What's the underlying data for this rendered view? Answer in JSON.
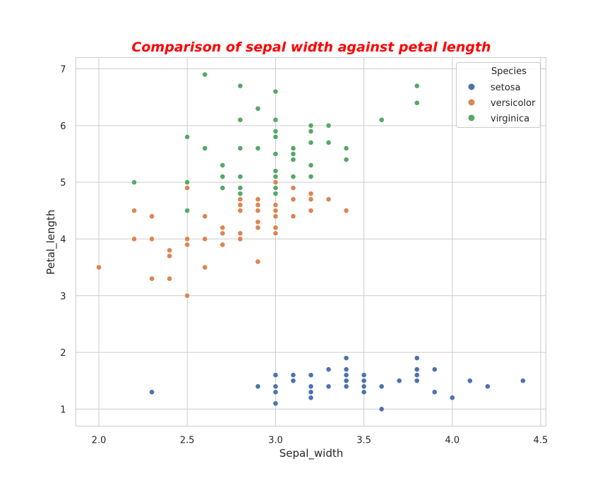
{
  "chart_data": {
    "type": "scatter",
    "title": "Comparison of sepal width against petal length",
    "xlabel": "Sepal_width",
    "ylabel": "Petal_length",
    "xlim": [
      1.87,
      4.53
    ],
    "ylim": [
      0.7,
      7.2
    ],
    "xticks": [
      "2.0",
      "2.5",
      "3.0",
      "3.5",
      "4.0",
      "4.5"
    ],
    "yticks": [
      "1",
      "2",
      "3",
      "4",
      "5",
      "6",
      "7"
    ],
    "grid": true,
    "legend": {
      "title": "Species",
      "position": "top-right"
    },
    "colors": {
      "setosa": "#4c72b0",
      "versicolor": "#dd8452",
      "virginica": "#55a868"
    },
    "series": [
      {
        "name": "setosa",
        "points": [
          [
            3.5,
            1.4
          ],
          [
            3.0,
            1.4
          ],
          [
            3.2,
            1.3
          ],
          [
            3.1,
            1.5
          ],
          [
            3.6,
            1.4
          ],
          [
            3.9,
            1.7
          ],
          [
            3.4,
            1.4
          ],
          [
            3.4,
            1.5
          ],
          [
            2.9,
            1.4
          ],
          [
            3.1,
            1.5
          ],
          [
            3.7,
            1.5
          ],
          [
            3.4,
            1.6
          ],
          [
            3.0,
            1.4
          ],
          [
            3.0,
            1.1
          ],
          [
            4.0,
            1.2
          ],
          [
            4.4,
            1.5
          ],
          [
            3.9,
            1.3
          ],
          [
            3.5,
            1.4
          ],
          [
            3.8,
            1.7
          ],
          [
            3.8,
            1.5
          ],
          [
            3.4,
            1.7
          ],
          [
            3.7,
            1.5
          ],
          [
            3.6,
            1.0
          ],
          [
            3.3,
            1.7
          ],
          [
            3.4,
            1.9
          ],
          [
            3.0,
            1.6
          ],
          [
            3.4,
            1.6
          ],
          [
            3.5,
            1.5
          ],
          [
            3.4,
            1.4
          ],
          [
            3.2,
            1.6
          ],
          [
            3.1,
            1.6
          ],
          [
            3.4,
            1.5
          ],
          [
            4.1,
            1.5
          ],
          [
            4.2,
            1.4
          ],
          [
            3.1,
            1.5
          ],
          [
            3.2,
            1.2
          ],
          [
            3.5,
            1.3
          ],
          [
            3.6,
            1.4
          ],
          [
            3.0,
            1.3
          ],
          [
            3.4,
            1.5
          ],
          [
            3.5,
            1.3
          ],
          [
            2.3,
            1.3
          ],
          [
            3.2,
            1.3
          ],
          [
            3.5,
            1.6
          ],
          [
            3.8,
            1.9
          ],
          [
            3.0,
            1.4
          ],
          [
            3.8,
            1.6
          ],
          [
            3.2,
            1.4
          ],
          [
            3.7,
            1.5
          ],
          [
            3.3,
            1.4
          ]
        ]
      },
      {
        "name": "versicolor",
        "points": [
          [
            3.2,
            4.7
          ],
          [
            3.2,
            4.5
          ],
          [
            3.1,
            4.9
          ],
          [
            2.3,
            4.0
          ],
          [
            2.8,
            4.6
          ],
          [
            2.8,
            4.5
          ],
          [
            3.3,
            4.7
          ],
          [
            2.4,
            3.3
          ],
          [
            2.9,
            4.6
          ],
          [
            2.7,
            3.9
          ],
          [
            2.0,
            3.5
          ],
          [
            3.0,
            4.2
          ],
          [
            2.2,
            4.0
          ],
          [
            2.9,
            4.7
          ],
          [
            2.9,
            3.6
          ],
          [
            3.1,
            4.4
          ],
          [
            3.0,
            4.5
          ],
          [
            2.7,
            4.1
          ],
          [
            2.2,
            4.5
          ],
          [
            2.5,
            3.9
          ],
          [
            3.2,
            4.8
          ],
          [
            2.8,
            4.0
          ],
          [
            2.5,
            4.9
          ],
          [
            2.8,
            4.7
          ],
          [
            2.9,
            4.3
          ],
          [
            3.0,
            4.4
          ],
          [
            2.8,
            4.8
          ],
          [
            3.0,
            5.0
          ],
          [
            2.9,
            4.5
          ],
          [
            2.6,
            3.5
          ],
          [
            2.4,
            3.8
          ],
          [
            2.4,
            3.7
          ],
          [
            2.7,
            3.9
          ],
          [
            2.7,
            5.1
          ],
          [
            3.0,
            4.5
          ],
          [
            3.4,
            4.5
          ],
          [
            3.1,
            4.7
          ],
          [
            2.3,
            4.4
          ],
          [
            3.0,
            4.1
          ],
          [
            2.5,
            4.0
          ],
          [
            2.6,
            4.4
          ],
          [
            3.0,
            4.6
          ],
          [
            2.6,
            4.0
          ],
          [
            2.3,
            3.3
          ],
          [
            2.7,
            4.2
          ],
          [
            3.0,
            4.2
          ],
          [
            2.9,
            4.2
          ],
          [
            2.9,
            4.3
          ],
          [
            2.5,
            3.0
          ],
          [
            2.8,
            4.1
          ]
        ]
      },
      {
        "name": "virginica",
        "points": [
          [
            3.3,
            6.0
          ],
          [
            2.7,
            5.1
          ],
          [
            3.0,
            5.9
          ],
          [
            2.9,
            5.6
          ],
          [
            3.0,
            5.8
          ],
          [
            3.0,
            6.6
          ],
          [
            2.5,
            4.5
          ],
          [
            2.9,
            6.3
          ],
          [
            2.5,
            5.8
          ],
          [
            3.6,
            6.1
          ],
          [
            3.2,
            5.1
          ],
          [
            2.7,
            5.3
          ],
          [
            3.0,
            5.5
          ],
          [
            2.5,
            5.0
          ],
          [
            2.8,
            5.1
          ],
          [
            3.2,
            5.3
          ],
          [
            3.0,
            5.5
          ],
          [
            3.8,
            6.7
          ],
          [
            2.6,
            6.9
          ],
          [
            2.2,
            5.0
          ],
          [
            3.2,
            5.7
          ],
          [
            2.8,
            4.9
          ],
          [
            2.8,
            6.7
          ],
          [
            2.7,
            4.9
          ],
          [
            3.3,
            5.7
          ],
          [
            3.2,
            6.0
          ],
          [
            2.8,
            4.8
          ],
          [
            3.0,
            4.9
          ],
          [
            2.8,
            5.6
          ],
          [
            3.0,
            5.8
          ],
          [
            2.8,
            6.1
          ],
          [
            3.8,
            6.4
          ],
          [
            2.8,
            5.6
          ],
          [
            2.8,
            5.1
          ],
          [
            2.6,
            5.6
          ],
          [
            3.0,
            6.1
          ],
          [
            3.4,
            5.6
          ],
          [
            3.1,
            5.5
          ],
          [
            3.0,
            4.8
          ],
          [
            3.1,
            5.4
          ],
          [
            3.1,
            5.6
          ],
          [
            3.1,
            5.1
          ],
          [
            2.7,
            5.1
          ],
          [
            3.2,
            5.9
          ],
          [
            3.3,
            5.7
          ],
          [
            3.0,
            5.2
          ],
          [
            2.5,
            5.0
          ],
          [
            3.0,
            5.2
          ],
          [
            3.4,
            5.4
          ],
          [
            3.0,
            5.1
          ]
        ]
      }
    ]
  }
}
